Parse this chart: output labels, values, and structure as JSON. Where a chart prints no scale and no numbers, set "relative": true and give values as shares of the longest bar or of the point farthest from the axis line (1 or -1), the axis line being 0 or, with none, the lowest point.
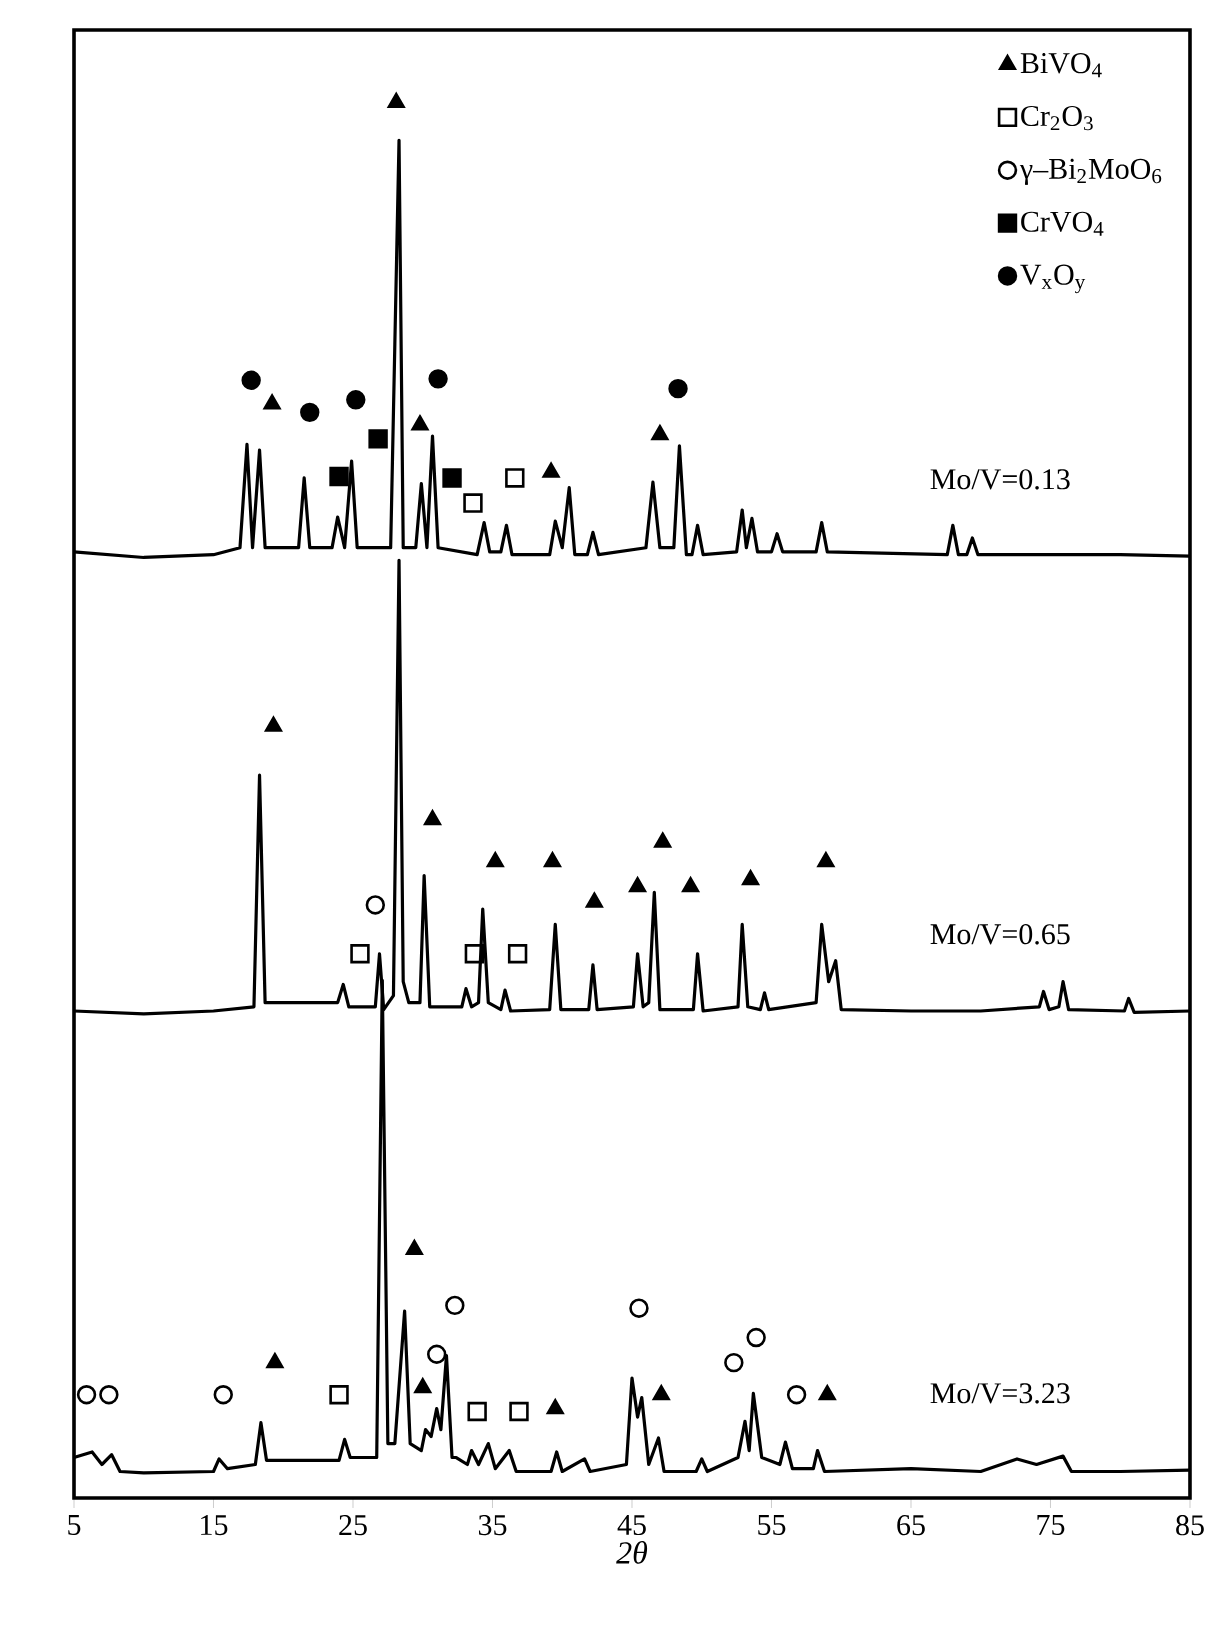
{
  "chart_data": {
    "type": "line",
    "xlabel": "2θ",
    "xlim": [
      5,
      85
    ],
    "xticks": [
      5,
      15,
      25,
      35,
      45,
      55,
      65,
      75,
      85
    ],
    "relative": true,
    "legend": "top right",
    "series": [
      {
        "name": "Mo/V=0.13",
        "color": "#000000",
        "x": [
          5,
          10,
          15,
          16.9,
          17.4,
          17.8,
          18.3,
          18.7,
          21.1,
          21.5,
          21.9,
          23.5,
          23.9,
          24.4,
          24.9,
          25.3,
          27.7,
          28.0,
          28.3,
          28.6,
          29.5,
          29.9,
          30.3,
          30.7,
          31.1,
          33.9,
          34.4,
          34.8,
          35.6,
          36.0,
          36.4,
          39.1,
          39.5,
          40.0,
          40.5,
          40.9,
          41.8,
          42.2,
          42.6,
          46.0,
          46.5,
          47.0,
          48.0,
          48.4,
          48.9,
          49.3,
          49.7,
          50.1,
          52.5,
          52.9,
          53.2,
          53.6,
          54.0,
          55.0,
          55.4,
          55.8,
          58.2,
          58.6,
          59.0,
          67.6,
          68.0,
          68.4,
          69.0,
          69.4,
          69.8,
          75,
          80,
          85
        ],
        "values": [
          0.678,
          0.674,
          0.676,
          0.681,
          0.755,
          0.681,
          0.751,
          0.681,
          0.681,
          0.731,
          0.681,
          0.681,
          0.703,
          0.681,
          0.743,
          0.681,
          0.681,
          0.827,
          0.973,
          0.681,
          0.681,
          0.727,
          0.681,
          0.761,
          0.681,
          0.676,
          0.699,
          0.678,
          0.678,
          0.697,
          0.676,
          0.676,
          0.7,
          0.681,
          0.724,
          0.676,
          0.676,
          0.692,
          0.676,
          0.681,
          0.728,
          0.681,
          0.681,
          0.754,
          0.676,
          0.676,
          0.697,
          0.676,
          0.678,
          0.708,
          0.681,
          0.702,
          0.678,
          0.678,
          0.691,
          0.678,
          0.678,
          0.699,
          0.678,
          0.676,
          0.697,
          0.676,
          0.676,
          0.688,
          0.676,
          0.676,
          0.676,
          0.675
        ]
      },
      {
        "name": "Mo/V=0.65",
        "color": "#000000",
        "x": [
          5,
          10,
          15,
          17.9,
          18.3,
          18.7,
          23.9,
          24.3,
          24.7,
          26.6,
          26.9,
          27.2,
          27.9,
          28.3,
          28.6,
          29.0,
          29.8,
          30.1,
          30.5,
          32.8,
          33.1,
          33.5,
          34.0,
          34.3,
          34.7,
          35.6,
          35.9,
          36.3,
          39.1,
          39.5,
          39.9,
          41.9,
          42.2,
          42.5,
          45.1,
          45.4,
          45.8,
          46.2,
          46.6,
          47.0,
          49.4,
          49.7,
          50.1,
          52.6,
          52.9,
          53.3,
          54.2,
          54.5,
          54.8,
          58.2,
          58.6,
          59.1,
          59.6,
          60.0,
          65,
          70,
          74.2,
          74.5,
          74.9,
          75.6,
          75.9,
          76.3,
          80.3,
          80.6,
          81.0,
          85
        ],
        "values": [
          0.349,
          0.347,
          0.349,
          0.352,
          0.518,
          0.355,
          0.355,
          0.368,
          0.352,
          0.352,
          0.39,
          0.35,
          0.36,
          0.672,
          0.37,
          0.355,
          0.355,
          0.446,
          0.352,
          0.352,
          0.365,
          0.352,
          0.355,
          0.422,
          0.355,
          0.35,
          0.364,
          0.349,
          0.35,
          0.411,
          0.35,
          0.35,
          0.382,
          0.35,
          0.352,
          0.39,
          0.352,
          0.355,
          0.434,
          0.35,
          0.35,
          0.39,
          0.349,
          0.352,
          0.411,
          0.352,
          0.35,
          0.362,
          0.35,
          0.355,
          0.411,
          0.37,
          0.385,
          0.35,
          0.349,
          0.349,
          0.352,
          0.363,
          0.35,
          0.352,
          0.37,
          0.35,
          0.349,
          0.358,
          0.348,
          0.349
        ]
      },
      {
        "name": "Mo/V=3.23",
        "color": "#000000",
        "x": [
          5,
          6.3,
          7.0,
          7.7,
          8.3,
          10,
          15,
          15.4,
          16,
          18.0,
          18.4,
          18.8,
          24.0,
          24.4,
          24.8,
          26.7,
          27.1,
          27.5,
          28.0,
          28.7,
          29.1,
          29.9,
          30.2,
          30.6,
          31.0,
          31.3,
          31.7,
          32.1,
          32.4,
          33.2,
          33.5,
          34.0,
          34.7,
          35.2,
          36.2,
          36.7,
          39.2,
          39.6,
          40.0,
          41.6,
          42.0,
          44.6,
          45.0,
          45.4,
          45.7,
          46.2,
          46.9,
          47.3,
          49.6,
          50.0,
          50.4,
          52.6,
          53.1,
          53.4,
          53.7,
          54.3,
          55.6,
          56.0,
          56.5,
          58.0,
          58.3,
          58.8,
          65,
          70,
          72.6,
          74,
          75.9,
          76.5,
          80,
          85
        ],
        "values": [
          0.029,
          0.033,
          0.024,
          0.031,
          0.019,
          0.018,
          0.019,
          0.028,
          0.021,
          0.024,
          0.054,
          0.027,
          0.027,
          0.042,
          0.029,
          0.029,
          0.371,
          0.039,
          0.039,
          0.134,
          0.039,
          0.034,
          0.049,
          0.044,
          0.064,
          0.049,
          0.102,
          0.029,
          0.029,
          0.024,
          0.034,
          0.024,
          0.039,
          0.021,
          0.034,
          0.019,
          0.019,
          0.033,
          0.019,
          0.028,
          0.019,
          0.024,
          0.086,
          0.058,
          0.072,
          0.024,
          0.043,
          0.019,
          0.019,
          0.028,
          0.019,
          0.029,
          0.055,
          0.034,
          0.075,
          0.029,
          0.024,
          0.04,
          0.021,
          0.021,
          0.034,
          0.019,
          0.021,
          0.019,
          0.028,
          0.024,
          0.03,
          0.019,
          0.019,
          0.02
        ]
      },
      {
        "type": "scatter",
        "name": "BiVO$_{4}$",
        "color": "#000000",
        "marker": "triangle",
        "x": [
          19.2,
          28.1,
          29.8,
          39.2,
          47.0,
          19.3,
          30.7,
          35.2,
          39.3,
          42.3,
          45.4,
          47.2,
          49.2,
          53.5,
          58.9,
          19.4,
          29.4,
          30.0,
          39.5,
          47.1,
          59.0
        ],
        "values": [
          0.784,
          1.0,
          0.769,
          0.735,
          0.762,
          0.553,
          0.486,
          0.456,
          0.456,
          0.427,
          0.438,
          0.47,
          0.438,
          0.443,
          0.456,
          0.097,
          0.178,
          0.079,
          0.064,
          0.074,
          0.074
        ]
      },
      {
        "type": "scatter",
        "name": "Cr$_{2}$O$_{3}$",
        "color": "#000000",
        "marker": "square-open",
        "x": [
          33.6,
          36.6,
          25.5,
          33.7,
          36.8,
          24.0,
          33.9,
          36.9
        ],
        "values": [
          0.713,
          0.731,
          0.39,
          0.39,
          0.39,
          0.074,
          0.062,
          0.062
        ]
      },
      {
        "type": "scatter",
        "name": "γ–Bi$_{2}$MoO$_{6}$",
        "color": "#000000",
        "marker": "circle-open",
        "x": [
          26.6,
          5.9,
          7.5,
          15.7,
          31.0,
          32.3,
          45.5,
          52.3,
          53.9,
          56.8
        ],
        "values": [
          0.425,
          0.074,
          0.074,
          0.074,
          0.103,
          0.138,
          0.136,
          0.097,
          0.115,
          0.074
        ]
      },
      {
        "type": "scatter",
        "name": "CrVO$_{4}$",
        "color": "#000000",
        "marker": "square",
        "x": [
          24.0,
          26.8,
          32.1
        ],
        "values": [
          0.732,
          0.759,
          0.731
        ]
      },
      {
        "type": "scatter",
        "name": "V$_{x}$O$_{y}$",
        "color": "#000000",
        "marker": "circle",
        "x": [
          17.7,
          21.9,
          25.2,
          31.1,
          48.3
        ],
        "values": [
          0.801,
          0.778,
          0.787,
          0.802,
          0.795
        ]
      }
    ]
  }
}
